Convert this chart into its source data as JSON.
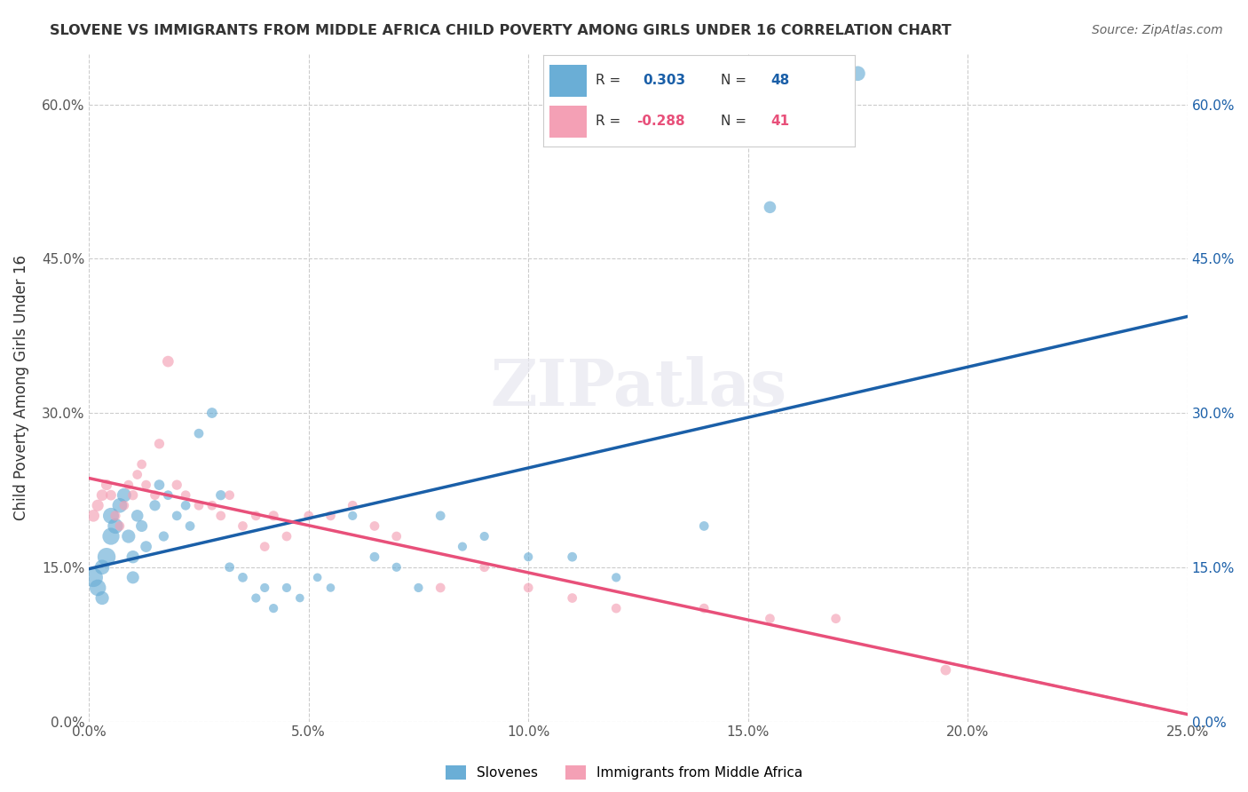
{
  "title": "SLOVENE VS IMMIGRANTS FROM MIDDLE AFRICA CHILD POVERTY AMONG GIRLS UNDER 16 CORRELATION CHART",
  "source": "Source: ZipAtlas.com",
  "ylabel": "Child Poverty Among Girls Under 16",
  "xlabel_ticks": [
    "0.0%",
    "5.0%",
    "10.0%",
    "15.0%",
    "20.0%",
    "25.0%"
  ],
  "ylabel_ticks": [
    "0.0%",
    "15.0%",
    "30.0%",
    "45.0%",
    "60.0%"
  ],
  "xlim": [
    0,
    0.25
  ],
  "ylim": [
    0,
    0.65
  ],
  "legend_r1": "R =  0.303   N = 48",
  "legend_r2": "R = -0.288   N = 41",
  "blue_color": "#6aaed6",
  "pink_color": "#f4a0b5",
  "blue_line_color": "#1a5fa8",
  "pink_line_color": "#e8507a",
  "watermark": "ZIPatlas",
  "slovene_x": [
    0.001,
    0.002,
    0.003,
    0.003,
    0.004,
    0.005,
    0.005,
    0.006,
    0.007,
    0.008,
    0.009,
    0.01,
    0.01,
    0.011,
    0.012,
    0.013,
    0.015,
    0.016,
    0.017,
    0.018,
    0.02,
    0.022,
    0.023,
    0.025,
    0.028,
    0.03,
    0.032,
    0.035,
    0.038,
    0.04,
    0.042,
    0.045,
    0.048,
    0.052,
    0.055,
    0.06,
    0.065,
    0.07,
    0.075,
    0.08,
    0.085,
    0.09,
    0.1,
    0.11,
    0.12,
    0.14,
    0.155,
    0.175
  ],
  "slovene_y": [
    0.14,
    0.13,
    0.15,
    0.12,
    0.16,
    0.18,
    0.2,
    0.19,
    0.21,
    0.22,
    0.18,
    0.16,
    0.14,
    0.2,
    0.19,
    0.17,
    0.21,
    0.23,
    0.18,
    0.22,
    0.2,
    0.21,
    0.19,
    0.28,
    0.3,
    0.22,
    0.15,
    0.14,
    0.12,
    0.13,
    0.11,
    0.13,
    0.12,
    0.14,
    0.13,
    0.2,
    0.16,
    0.15,
    0.13,
    0.2,
    0.17,
    0.18,
    0.16,
    0.16,
    0.14,
    0.19,
    0.5,
    0.63
  ],
  "slovene_size": [
    200,
    150,
    120,
    100,
    180,
    160,
    140,
    130,
    120,
    110,
    100,
    90,
    85,
    80,
    75,
    70,
    65,
    60,
    55,
    50,
    50,
    50,
    50,
    50,
    60,
    55,
    50,
    50,
    45,
    45,
    45,
    45,
    40,
    40,
    40,
    45,
    50,
    45,
    45,
    50,
    45,
    45,
    45,
    50,
    45,
    50,
    80,
    120
  ],
  "immigrant_x": [
    0.001,
    0.002,
    0.003,
    0.004,
    0.005,
    0.006,
    0.007,
    0.008,
    0.009,
    0.01,
    0.011,
    0.012,
    0.013,
    0.015,
    0.016,
    0.018,
    0.02,
    0.022,
    0.025,
    0.028,
    0.03,
    0.032,
    0.035,
    0.038,
    0.04,
    0.042,
    0.045,
    0.05,
    0.055,
    0.06,
    0.065,
    0.07,
    0.08,
    0.09,
    0.1,
    0.11,
    0.12,
    0.14,
    0.155,
    0.17,
    0.195
  ],
  "immigrant_y": [
    0.2,
    0.21,
    0.22,
    0.23,
    0.22,
    0.2,
    0.19,
    0.21,
    0.23,
    0.22,
    0.24,
    0.25,
    0.23,
    0.22,
    0.27,
    0.35,
    0.23,
    0.22,
    0.21,
    0.21,
    0.2,
    0.22,
    0.19,
    0.2,
    0.17,
    0.2,
    0.18,
    0.2,
    0.2,
    0.21,
    0.19,
    0.18,
    0.13,
    0.15,
    0.13,
    0.12,
    0.11,
    0.11,
    0.1,
    0.1,
    0.05
  ],
  "immigrant_size": [
    80,
    75,
    70,
    65,
    60,
    55,
    50,
    50,
    50,
    55,
    50,
    50,
    50,
    50,
    55,
    70,
    55,
    50,
    50,
    50,
    50,
    50,
    50,
    50,
    50,
    55,
    50,
    50,
    50,
    50,
    50,
    50,
    50,
    50,
    50,
    50,
    50,
    50,
    50,
    50,
    60
  ]
}
